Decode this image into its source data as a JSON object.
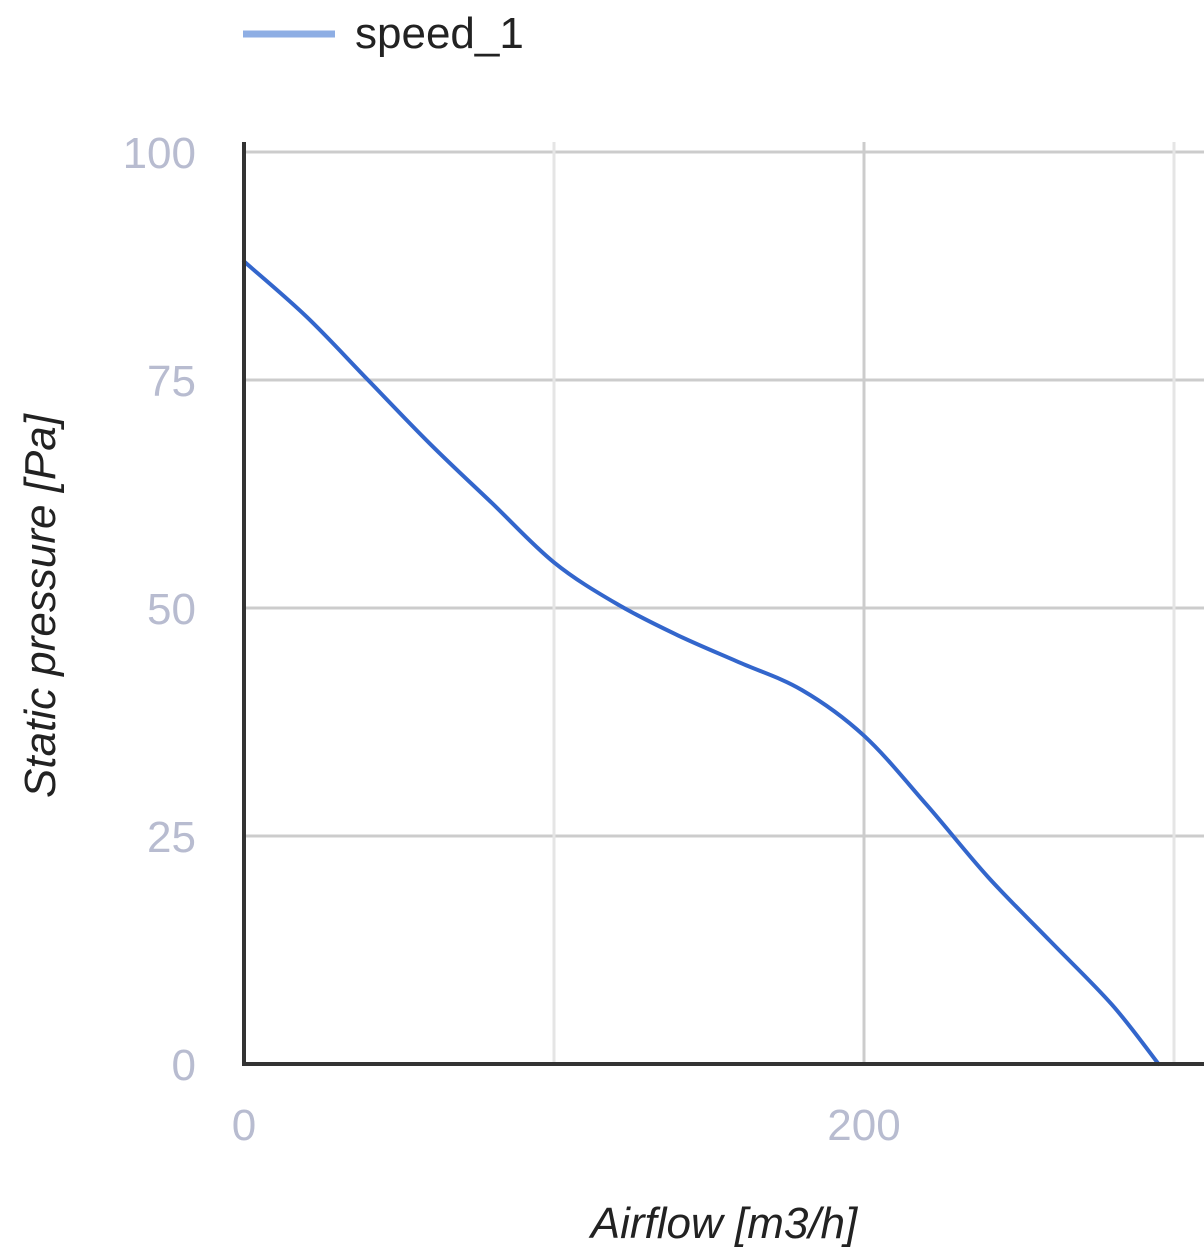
{
  "chart_data": {
    "type": "line",
    "title": "",
    "xlabel": "Airflow [m3/h]",
    "ylabel": "Static pressure [Pa]",
    "xlim": [
      0,
      300
    ],
    "ylim": [
      0,
      100
    ],
    "x_ticks": [
      0,
      200
    ],
    "x_tick_labels": [
      "0",
      "200"
    ],
    "x_gridlines": [
      0,
      100,
      200,
      300
    ],
    "y_ticks": [
      0,
      25,
      50,
      75,
      100
    ],
    "y_tick_labels": [
      "0",
      "25",
      "50",
      "75",
      "100"
    ],
    "grid": true,
    "legend_position": "top-left",
    "series": [
      {
        "name": "speed_1",
        "color": "#3366cc",
        "x": [
          0,
          20,
          40,
          60,
          80,
          100,
          120,
          140,
          160,
          180,
          200,
          220,
          240,
          260,
          280,
          295
        ],
        "y": [
          88,
          82,
          75,
          68,
          61.5,
          55,
          50.5,
          47,
          44,
          41,
          36,
          28.5,
          20.5,
          13.5,
          6.5,
          0
        ]
      }
    ],
    "colors": {
      "gridline": "#cccccc",
      "gridline_minor": "#e5e5e5",
      "axis": "#333333",
      "tick_label": "#b8bcd0",
      "axis_title": "#222222",
      "legend_text": "#222222"
    }
  }
}
